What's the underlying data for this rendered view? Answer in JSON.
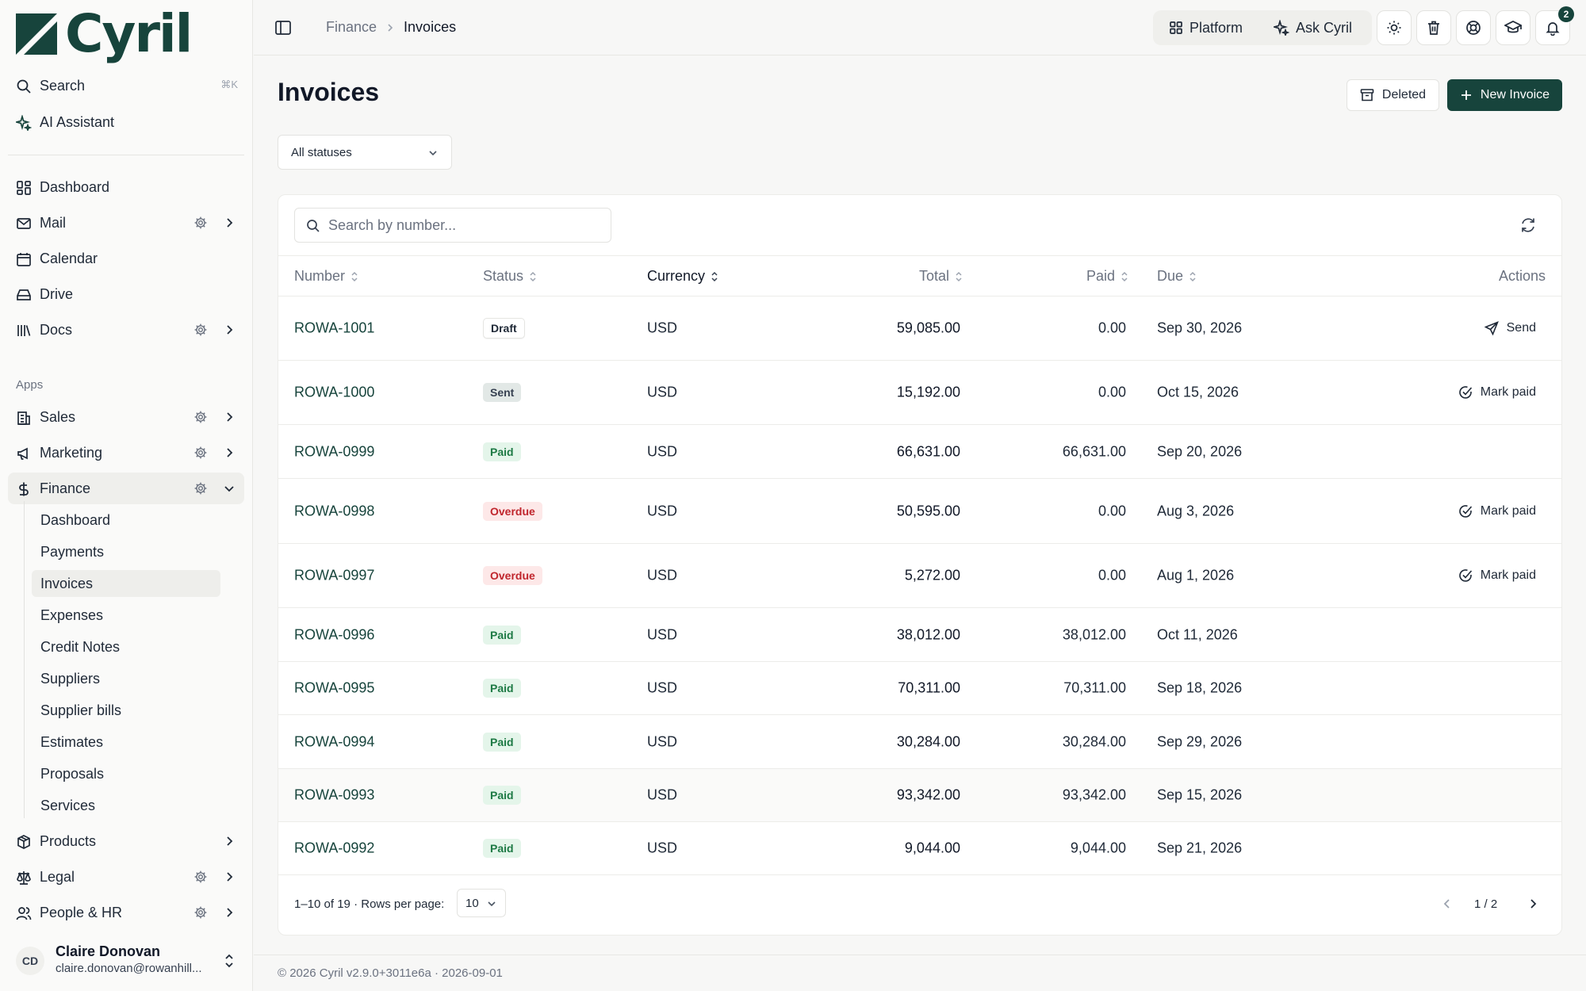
{
  "brand": {
    "name": "Cyril",
    "color": "#17443c"
  },
  "sidebar": {
    "search_label": "Search",
    "search_shortcut": "⌘K",
    "ai_label": "AI Assistant",
    "items": [
      {
        "label": "Dashboard",
        "icon": "dashboard-icon"
      },
      {
        "label": "Mail",
        "icon": "mail-icon"
      },
      {
        "label": "Calendar",
        "icon": "calendar-icon"
      },
      {
        "label": "Drive",
        "icon": "drive-icon"
      },
      {
        "label": "Docs",
        "icon": "docs-icon"
      }
    ],
    "apps_label": "Apps",
    "apps": [
      {
        "label": "Sales",
        "icon": "sales-icon"
      },
      {
        "label": "Marketing",
        "icon": "megaphone-icon"
      },
      {
        "label": "Finance",
        "icon": "dollar-icon",
        "expanded": true
      },
      {
        "label": "Products",
        "icon": "box-icon"
      },
      {
        "label": "Legal",
        "icon": "scale-icon"
      },
      {
        "label": "People & HR",
        "icon": "people-icon"
      }
    ],
    "finance_sub": [
      "Dashboard",
      "Payments",
      "Invoices",
      "Expenses",
      "Credit Notes",
      "Suppliers",
      "Supplier bills",
      "Estimates",
      "Proposals",
      "Services"
    ],
    "finance_active": "Invoices",
    "user": {
      "initials": "CD",
      "name": "Claire Donovan",
      "email": "claire.donovan@rowanhill..."
    }
  },
  "topbar": {
    "breadcrumb_parent": "Finance",
    "breadcrumb_current": "Invoices",
    "platform_label": "Platform",
    "ask_label": "Ask Cyril",
    "notification_count": "2"
  },
  "page": {
    "title": "Invoices",
    "deleted_label": "Deleted",
    "new_label": "New Invoice",
    "status_filter": "All statuses",
    "search_placeholder": "Search by number..."
  },
  "table": {
    "columns": {
      "number": "Number",
      "status": "Status",
      "currency": "Currency",
      "total": "Total",
      "paid": "Paid",
      "due": "Due",
      "actions": "Actions"
    },
    "rows": [
      {
        "number": "ROWA-1001",
        "status": "Draft",
        "currency": "USD",
        "total": "59,085.00",
        "paid": "0.00",
        "due": "Sep 30, 2026",
        "action": "Send"
      },
      {
        "number": "ROWA-1000",
        "status": "Sent",
        "currency": "USD",
        "total": "15,192.00",
        "paid": "0.00",
        "due": "Oct 15, 2026",
        "action": "Mark paid"
      },
      {
        "number": "ROWA-0999",
        "status": "Paid",
        "currency": "USD",
        "total": "66,631.00",
        "paid": "66,631.00",
        "due": "Sep 20, 2026",
        "action": ""
      },
      {
        "number": "ROWA-0998",
        "status": "Overdue",
        "currency": "USD",
        "total": "50,595.00",
        "paid": "0.00",
        "due": "Aug 3, 2026",
        "action": "Mark paid"
      },
      {
        "number": "ROWA-0997",
        "status": "Overdue",
        "currency": "USD",
        "total": "5,272.00",
        "paid": "0.00",
        "due": "Aug 1, 2026",
        "action": "Mark paid"
      },
      {
        "number": "ROWA-0996",
        "status": "Paid",
        "currency": "USD",
        "total": "38,012.00",
        "paid": "38,012.00",
        "due": "Oct 11, 2026",
        "action": ""
      },
      {
        "number": "ROWA-0995",
        "status": "Paid",
        "currency": "USD",
        "total": "70,311.00",
        "paid": "70,311.00",
        "due": "Sep 18, 2026",
        "action": ""
      },
      {
        "number": "ROWA-0994",
        "status": "Paid",
        "currency": "USD",
        "total": "30,284.00",
        "paid": "30,284.00",
        "due": "Sep 29, 2026",
        "action": ""
      },
      {
        "number": "ROWA-0993",
        "status": "Paid",
        "currency": "USD",
        "total": "93,342.00",
        "paid": "93,342.00",
        "due": "Sep 15, 2026",
        "action": ""
      },
      {
        "number": "ROWA-0992",
        "status": "Paid",
        "currency": "USD",
        "total": "9,044.00",
        "paid": "9,044.00",
        "due": "Sep 21, 2026",
        "action": ""
      }
    ]
  },
  "pagination": {
    "range": "1–10 of 19",
    "rows_label": "· Rows per page:",
    "rows_value": "10",
    "page_label": "1 / 2"
  },
  "footer": {
    "copyright": "© 2026 Cyril v2.9.0+3011e6a · 2026-09-01"
  }
}
